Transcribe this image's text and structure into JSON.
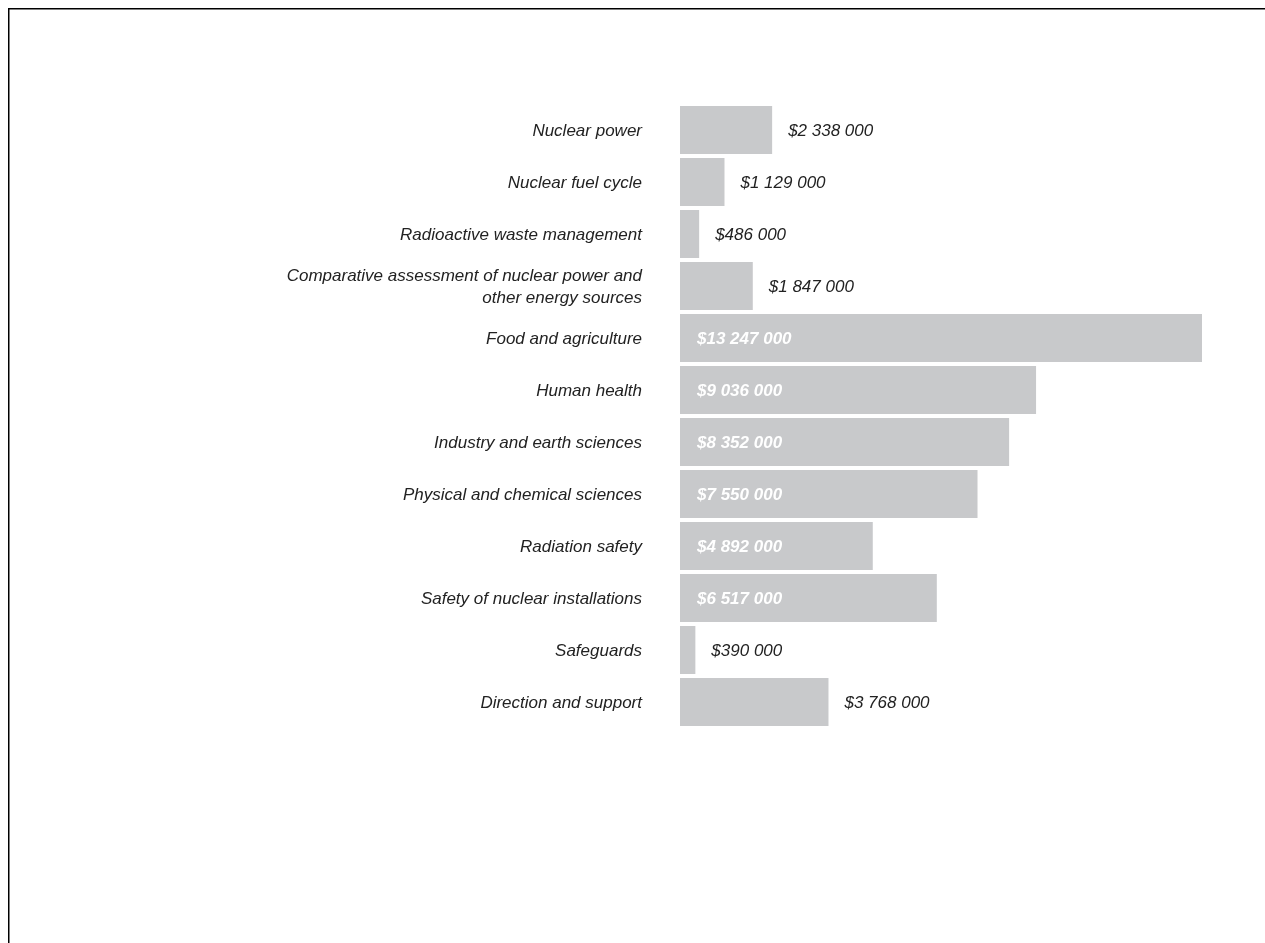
{
  "chart_data": {
    "type": "bar",
    "orientation": "horizontal",
    "categories": [
      "Nuclear power",
      "Nuclear fuel cycle",
      "Radioactive waste management",
      "Comparative assessment of nuclear power and other energy sources",
      "Food and agriculture",
      "Human health",
      "Industry and earth sciences",
      "Physical and chemical sciences",
      "Radiation safety",
      "Safety of nuclear installations",
      "Safeguards",
      "Direction and support"
    ],
    "values": [
      2338000,
      1129000,
      486000,
      1847000,
      13247000,
      9036000,
      8352000,
      7550000,
      4892000,
      6517000,
      390000,
      3768000
    ],
    "value_labels": [
      "$2 338 000",
      "$1 129 000",
      "$486 000",
      "$1 847 000",
      "$13 247 000",
      "$9 036 000",
      "$8 352 000",
      "$7 550 000",
      "$4 892 000",
      "$6 517 000",
      "$390 000",
      "$3 768 000"
    ],
    "color": "#c8c9cb"
  }
}
